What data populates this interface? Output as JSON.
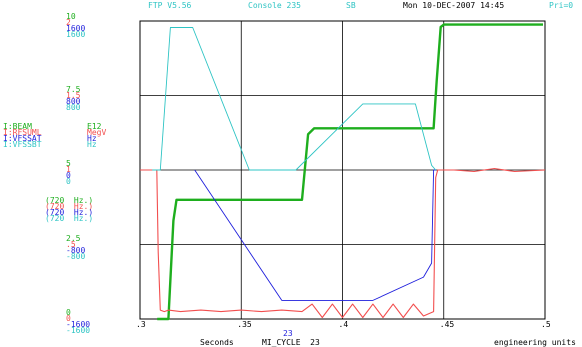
{
  "header": {
    "app": "FTP V5.56",
    "console": "Console 235",
    "sb": "SB",
    "datetime": "Mon 10-DEC-2007 14:45",
    "pri": "Pri=0"
  },
  "colors": {
    "green": "#1eae1e",
    "red": "#f24e4e",
    "blue": "#1f1fdc",
    "cyan": "#2ec4c4",
    "grid": "#000000"
  },
  "chart_data": {
    "type": "line",
    "xlabel": "Seconds",
    "x_right_label": "engineering units",
    "cycle_label": "MI_CYCLE  23",
    "cycle_number": "23",
    "xlim": [
      0.3,
      0.5
    ],
    "xticks": [
      ".3",
      ".35",
      ".4",
      ".45",
      ".5"
    ],
    "series_labels": [
      {
        "name": "I:BEAM",
        "unit": "E12",
        "color": "green"
      },
      {
        "name": "I:RFSUML",
        "unit": "MegV",
        "color": "red"
      },
      {
        "name": "I:VFSSAT",
        "unit": "Hz",
        "color": "blue"
      },
      {
        "name": "I:VFSSBT",
        "unit": "Hz",
        "color": "cyan"
      }
    ],
    "rate_labels": [
      {
        "text": "(720  Hz.)",
        "color": "green"
      },
      {
        "text": "(720  Hz.)",
        "color": "red"
      },
      {
        "text": "(720  Hz.)",
        "color": "blue"
      },
      {
        "text": "(720  Hz.)",
        "color": "cyan"
      }
    ],
    "yticks": [
      {
        "frac": 1.0,
        "labels": [
          {
            "t": "10",
            "c": "green"
          },
          {
            "t": "2",
            "c": "red"
          },
          {
            "t": "1600",
            "c": "blue"
          },
          {
            "t": "1600",
            "c": "cyan"
          }
        ]
      },
      {
        "frac": 0.75,
        "labels": [
          {
            "t": "7.5",
            "c": "green"
          },
          {
            "t": "1.5",
            "c": "red"
          },
          {
            "t": "800",
            "c": "blue"
          },
          {
            "t": "800",
            "c": "cyan"
          }
        ]
      },
      {
        "frac": 0.5,
        "labels": [
          {
            "t": "5",
            "c": "green"
          },
          {
            "t": "1",
            "c": "red"
          },
          {
            "t": "0",
            "c": "blue"
          },
          {
            "t": "0",
            "c": "cyan"
          }
        ]
      },
      {
        "frac": 0.25,
        "labels": [
          {
            "t": "2.5",
            "c": "green"
          },
          {
            "t": ".5",
            "c": "red"
          },
          {
            "t": "-800",
            "c": "blue"
          },
          {
            "t": "-800",
            "c": "cyan"
          }
        ]
      },
      {
        "frac": 0.0,
        "labels": [
          {
            "t": "0",
            "c": "green"
          },
          {
            "t": "0",
            "c": "red"
          },
          {
            "t": "-1600",
            "c": "blue"
          },
          {
            "t": "-1600",
            "c": "cyan"
          }
        ]
      }
    ],
    "series": [
      {
        "name": "I:BEAM",
        "color": "green",
        "ylim": [
          0,
          10
        ],
        "points": [
          [
            0.3085,
            0
          ],
          [
            0.314,
            0
          ],
          [
            0.3165,
            3.3
          ],
          [
            0.318,
            4.0
          ],
          [
            0.32,
            4.0
          ],
          [
            0.38,
            4.0
          ],
          [
            0.383,
            6.2
          ],
          [
            0.386,
            6.4
          ],
          [
            0.445,
            6.4
          ],
          [
            0.4465,
            8.0
          ],
          [
            0.4485,
            9.8
          ],
          [
            0.45,
            9.88
          ],
          [
            0.499,
            9.88
          ]
        ]
      },
      {
        "name": "I:RFSUML",
        "color": "red",
        "ylim": [
          0,
          2
        ],
        "points": [
          [
            0.3,
            1.0
          ],
          [
            0.3083,
            1.0
          ],
          [
            0.309,
            0.45
          ],
          [
            0.31,
            0.06
          ],
          [
            0.312,
            0.05
          ],
          [
            0.314,
            0.06
          ],
          [
            0.32,
            0.05
          ],
          [
            0.33,
            0.06
          ],
          [
            0.34,
            0.05
          ],
          [
            0.35,
            0.06
          ],
          [
            0.36,
            0.05
          ],
          [
            0.37,
            0.06
          ],
          [
            0.38,
            0.05
          ],
          [
            0.385,
            0.1
          ],
          [
            0.39,
            0.01
          ],
          [
            0.395,
            0.1
          ],
          [
            0.4,
            0.01
          ],
          [
            0.405,
            0.1
          ],
          [
            0.41,
            0.01
          ],
          [
            0.415,
            0.1
          ],
          [
            0.42,
            0.01
          ],
          [
            0.425,
            0.1
          ],
          [
            0.43,
            0.01
          ],
          [
            0.435,
            0.1
          ],
          [
            0.44,
            0.02
          ],
          [
            0.445,
            0.05
          ],
          [
            0.446,
            0.95
          ],
          [
            0.447,
            1.0
          ],
          [
            0.455,
            1.0
          ],
          [
            0.465,
            0.99
          ],
          [
            0.475,
            1.01
          ],
          [
            0.485,
            0.99
          ],
          [
            0.5,
            1.0
          ]
        ]
      },
      {
        "name": "I:VFSSAT",
        "color": "blue",
        "ylim": [
          -1600,
          1600
        ],
        "points": [
          [
            0.327,
            0
          ],
          [
            0.37,
            -1400
          ],
          [
            0.415,
            -1400
          ],
          [
            0.44,
            -1150
          ],
          [
            0.444,
            -1000
          ],
          [
            0.445,
            0
          ],
          [
            0.446,
            0
          ]
        ]
      },
      {
        "name": "I:VFSSBT",
        "color": "cyan",
        "ylim": [
          -1600,
          1600
        ],
        "points": [
          [
            0.306,
            0
          ],
          [
            0.31,
            0
          ],
          [
            0.315,
            1530
          ],
          [
            0.326,
            1530
          ],
          [
            0.354,
            0
          ],
          [
            0.366,
            0
          ],
          [
            0.377,
            0
          ],
          [
            0.41,
            710
          ],
          [
            0.436,
            710
          ],
          [
            0.444,
            50
          ],
          [
            0.446,
            0
          ]
        ]
      }
    ]
  }
}
